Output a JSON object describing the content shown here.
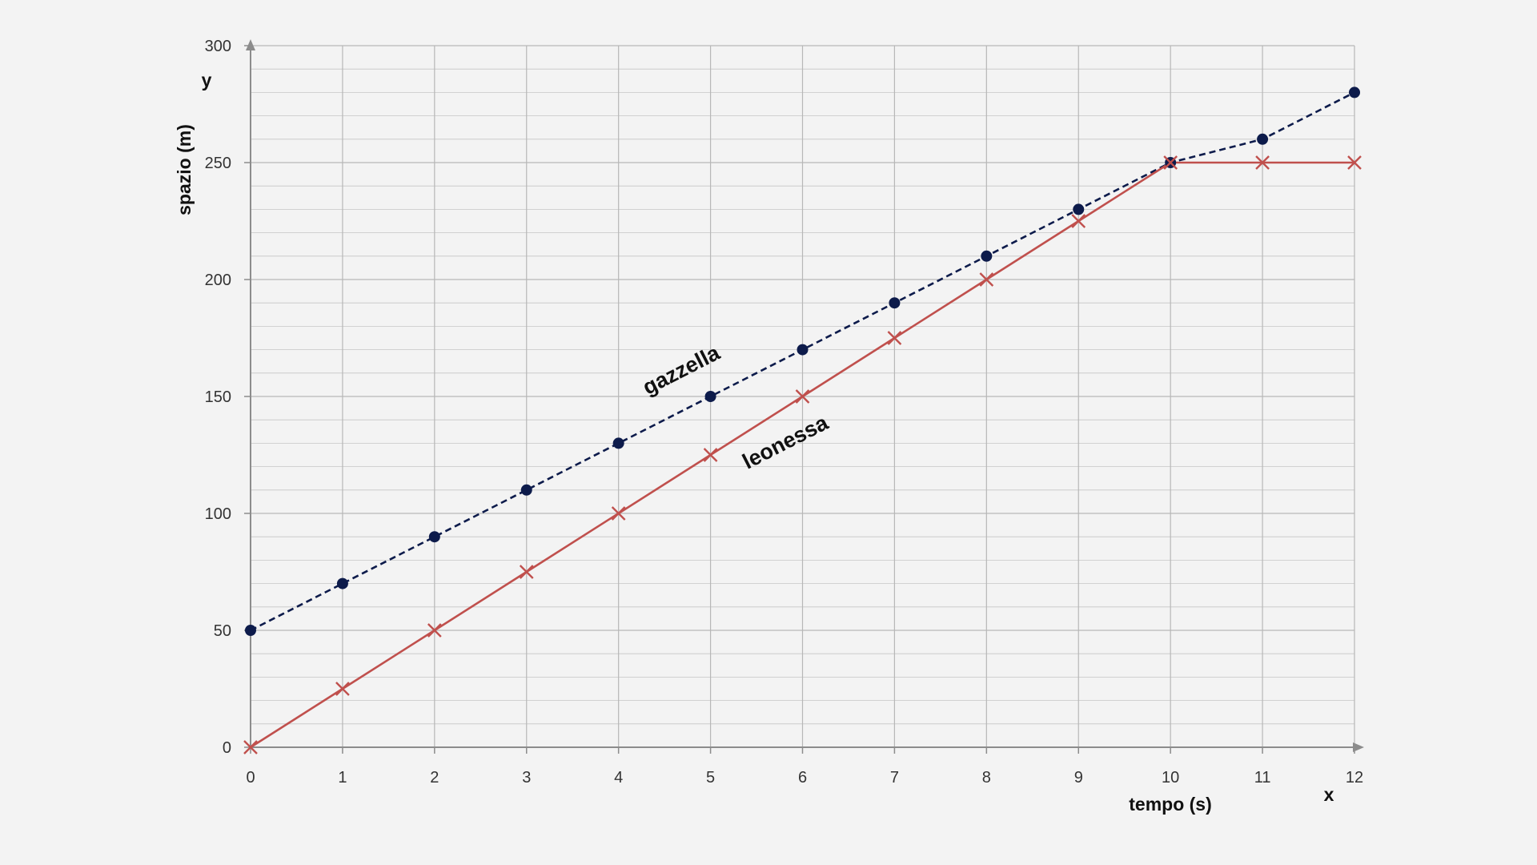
{
  "chart_data": {
    "type": "line",
    "xlabel": "tempo (s)",
    "ylabel": "spazio (m)",
    "x_axis_letter": "x",
    "y_axis_letter": "y",
    "xlim": [
      0,
      12
    ],
    "ylim": [
      0,
      300
    ],
    "x_ticks": [
      "0",
      "1",
      "2",
      "3",
      "4",
      "5",
      "6",
      "7",
      "8",
      "9",
      "10",
      "11",
      "12"
    ],
    "y_ticks": [
      "0",
      "50",
      "100",
      "150",
      "200",
      "250",
      "300"
    ],
    "grid": {
      "x_major": true,
      "y_minor_step": 10,
      "y_major_step": 50
    },
    "x": [
      0,
      1,
      2,
      3,
      4,
      5,
      6,
      7,
      8,
      9,
      10,
      11,
      12
    ],
    "series": [
      {
        "name": "gazzella",
        "values": [
          50,
          70,
          90,
          110,
          130,
          150,
          170,
          190,
          210,
          230,
          250,
          260,
          280
        ],
        "color": "#0d1b4b",
        "line_style": "dashed",
        "marker": "circle"
      },
      {
        "name": "leonessa",
        "values": [
          0,
          25,
          50,
          75,
          100,
          125,
          150,
          175,
          200,
          225,
          250,
          250,
          250
        ],
        "color": "#c0504d",
        "line_style": "solid",
        "marker": "x"
      }
    ]
  },
  "colors": {
    "background": "#f3f3f3",
    "grid": "#b7b7b7",
    "axis": "#8c8c8c"
  }
}
